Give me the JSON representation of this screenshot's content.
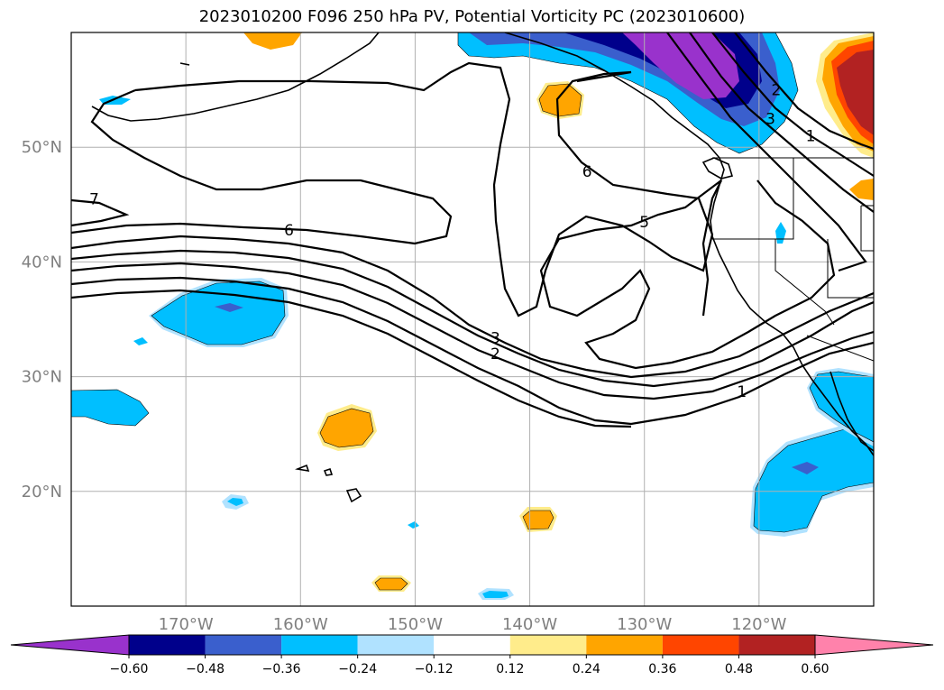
{
  "title": "2023010200 F096 250 hPa PV, Potential Vorticity PC (2023010600)",
  "map": {
    "extent": {
      "lon_min": -180,
      "lon_max": -110,
      "lat_min": 10,
      "lat_max": 60
    },
    "lon_ticks": [
      {
        "value": -170,
        "label": "170°W"
      },
      {
        "value": -160,
        "label": "160°W"
      },
      {
        "value": -150,
        "label": "150°W"
      },
      {
        "value": -140,
        "label": "140°W"
      },
      {
        "value": -130,
        "label": "130°W"
      },
      {
        "value": -120,
        "label": "120°W"
      }
    ],
    "lat_ticks": [
      {
        "value": 20,
        "label": "20°N"
      },
      {
        "value": 30,
        "label": "30°N"
      },
      {
        "value": 40,
        "label": "40°N"
      },
      {
        "value": 50,
        "label": "50°N"
      }
    ],
    "gridlines": true,
    "contour_labels": [
      {
        "text": "7",
        "lon": -178,
        "lat": 45.5
      },
      {
        "text": "6",
        "lon": -161,
        "lat": 42.8
      },
      {
        "text": "6",
        "lon": -135,
        "lat": 47.9
      },
      {
        "text": "5",
        "lon": -130,
        "lat": 43.5
      },
      {
        "text": "3",
        "lon": -143,
        "lat": 33.4
      },
      {
        "text": "2",
        "lon": -143,
        "lat": 32.0
      },
      {
        "text": "1",
        "lon": -121.5,
        "lat": 28.7
      },
      {
        "text": "1",
        "lon": -115.5,
        "lat": 51.0
      },
      {
        "text": "3",
        "lon": -119,
        "lat": 52.5
      },
      {
        "text": "2",
        "lon": -118.5,
        "lat": 55.0
      }
    ]
  },
  "colorbar": {
    "colors": [
      "#9932CC",
      "#00008B",
      "#3A5FCD",
      "#00BFFF",
      "#B0E2FF",
      "#FFFFFF",
      "#FFEC8B",
      "#FFA500",
      "#FF4500",
      "#B22222",
      "#FF82AB"
    ],
    "tick_labels": [
      "−0.60",
      "−0.48",
      "−0.36",
      "−0.24",
      "−0.12",
      "0.12",
      "0.24",
      "0.36",
      "0.48",
      "0.60"
    ]
  }
}
